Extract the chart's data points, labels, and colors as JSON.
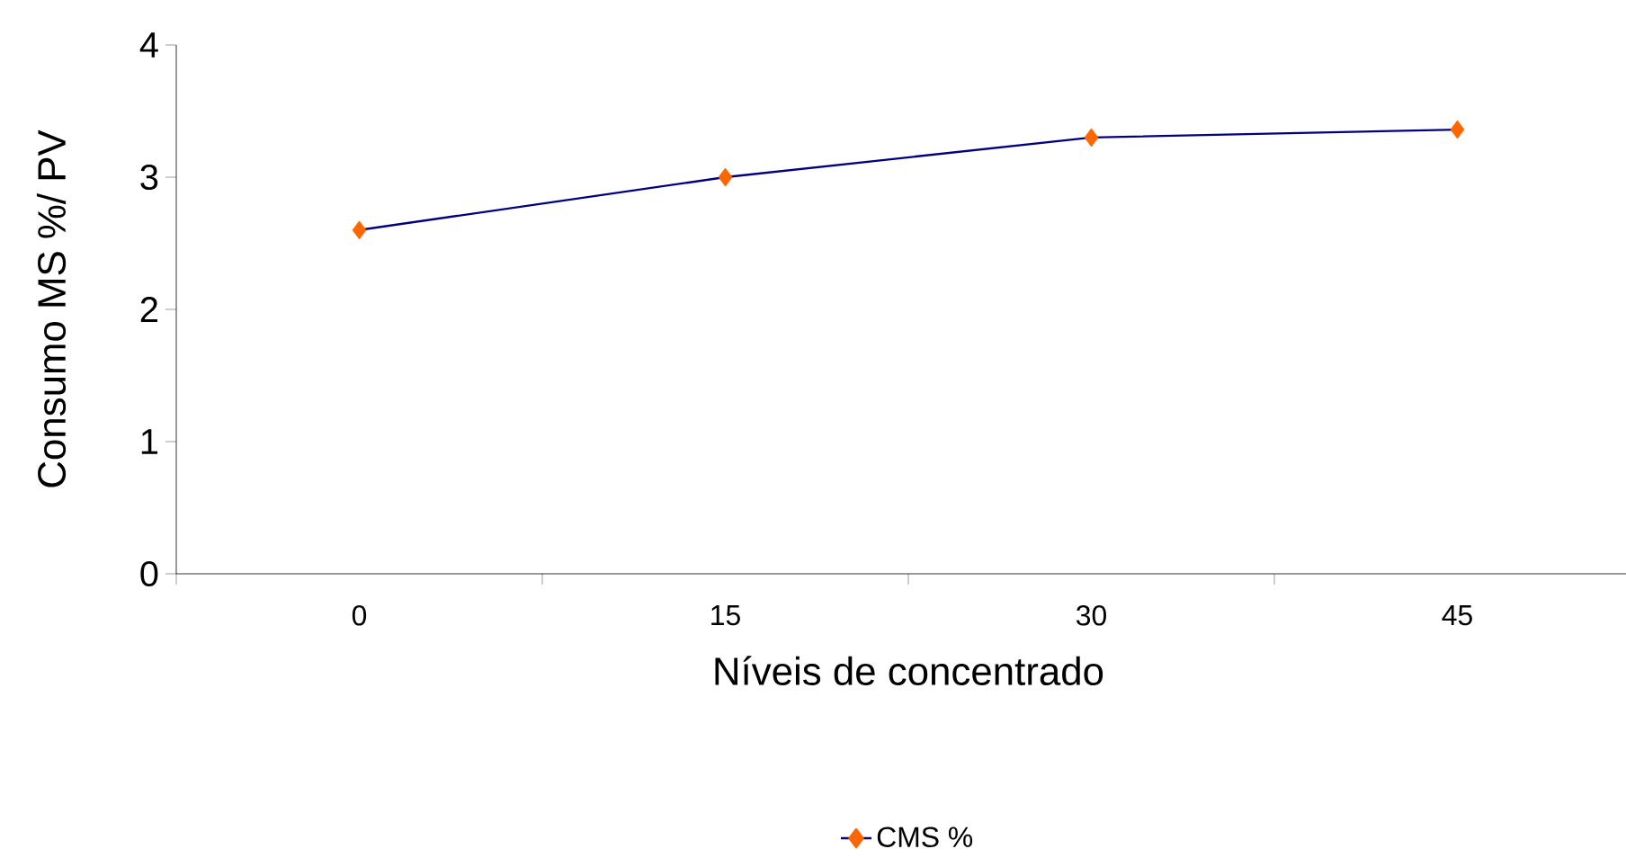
{
  "chart_data": {
    "type": "line",
    "xlabel": "Níveis de concentrado",
    "ylabel": "Consumo MS %/ PV",
    "categories": [
      "0",
      "15",
      "30",
      "45"
    ],
    "series": [
      {
        "name": "CMS %",
        "color": "#000080",
        "colors": [
          "#ff6600",
          "#ff6600",
          "#ff6600",
          "#ff6600"
        ],
        "values": [
          2.6,
          3.0,
          3.3,
          3.36
        ]
      }
    ],
    "ylim": [
      0,
      4
    ],
    "yticks": [
      0,
      1,
      2,
      3,
      4
    ],
    "grid": false,
    "legend": "bottom",
    "marker": "diamond",
    "line_style": "solid"
  }
}
